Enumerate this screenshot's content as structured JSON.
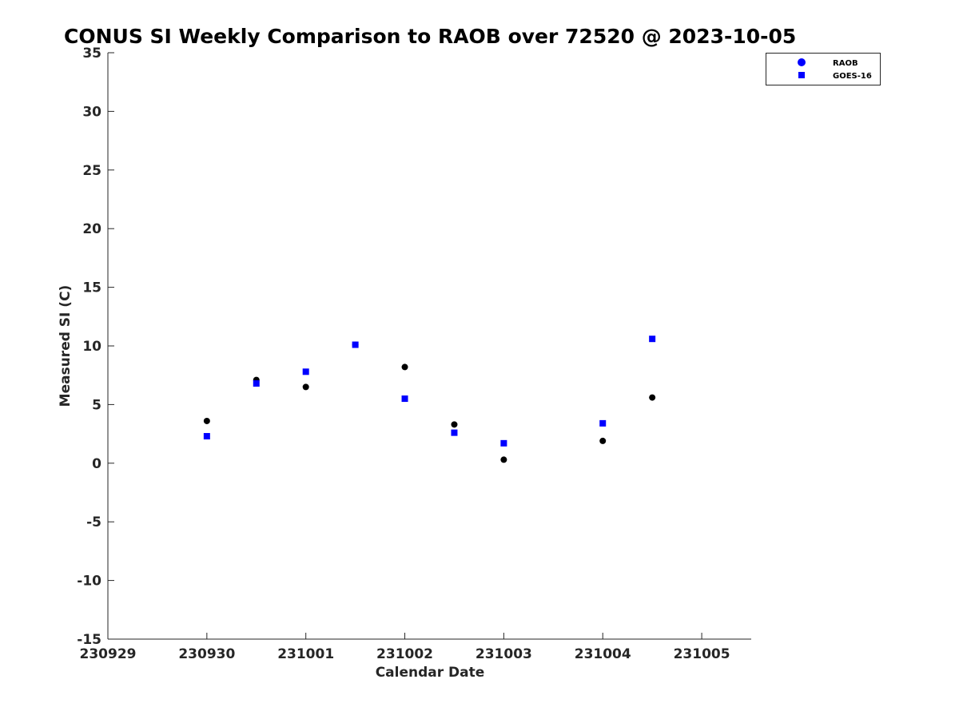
{
  "chart_data": {
    "type": "scatter",
    "title": "CONUS SI Weekly Comparison to RAOB over 72520 @ 2023-10-05",
    "xlabel": "Calendar Date",
    "ylabel": "Measured SI (C)",
    "xlim": [
      0,
      6.5
    ],
    "ylim": [
      -15,
      35
    ],
    "x_ticks": [
      0,
      1,
      2,
      3,
      4,
      5,
      6
    ],
    "x_tick_labels": [
      "230929",
      "230930",
      "231001",
      "231002",
      "231003",
      "231004",
      "231005"
    ],
    "y_ticks": [
      -15,
      -10,
      -5,
      0,
      5,
      10,
      15,
      20,
      25,
      30,
      35
    ],
    "y_tick_labels": [
      "-15",
      "-10",
      "-5",
      "0",
      "5",
      "10",
      "15",
      "20",
      "25",
      "30",
      "35"
    ],
    "grid": false,
    "legend_position": "top-right",
    "series": [
      {
        "name": "RAOB",
        "marker": "circle",
        "color": "#000000",
        "legend_color": "#0000ff",
        "x": [
          1.0,
          1.5,
          2.0,
          2.5,
          3.0,
          3.5,
          4.0,
          5.0,
          5.5
        ],
        "y": [
          3.6,
          7.1,
          6.5,
          10.1,
          8.2,
          3.3,
          0.3,
          1.9,
          5.6
        ]
      },
      {
        "name": "GOES-16",
        "marker": "square",
        "color": "#0000ff",
        "legend_color": "#0000ff",
        "x": [
          1.0,
          1.5,
          2.0,
          2.5,
          3.0,
          3.5,
          4.0,
          5.0,
          5.5
        ],
        "y": [
          2.3,
          6.8,
          7.8,
          10.1,
          5.5,
          2.6,
          1.7,
          3.4,
          10.6
        ]
      }
    ]
  }
}
